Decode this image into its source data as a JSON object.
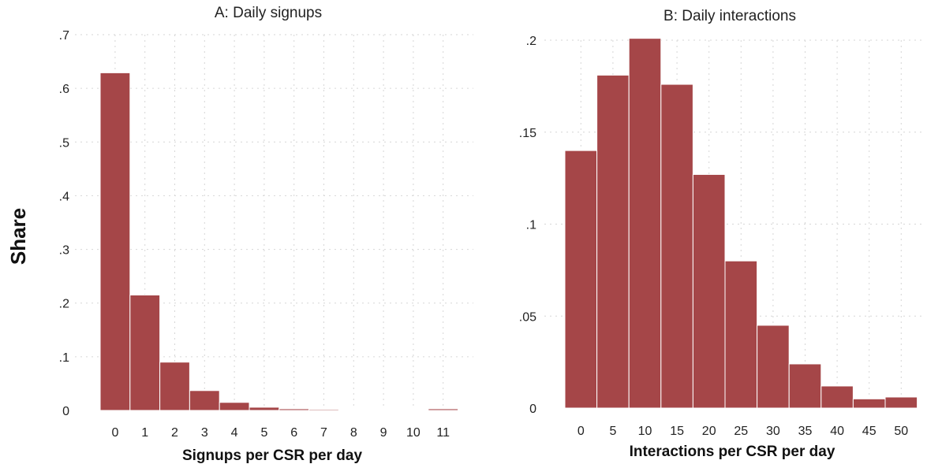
{
  "figure": {
    "shared_ylabel": "Share"
  },
  "colors": {
    "bar_fill": "#a54648",
    "bar_edge": "#7a2a2c",
    "grid": "#d6d6d6",
    "text": "#222222"
  },
  "chart_data": [
    {
      "type": "bar",
      "title": "A: Daily signups",
      "xlabel": "Signups per CSR per day",
      "ylabel": "Share",
      "categories": [
        "0",
        "1",
        "2",
        "3",
        "4",
        "5",
        "6",
        "7",
        "8",
        "9",
        "10",
        "11"
      ],
      "values": [
        0.629,
        0.215,
        0.09,
        0.037,
        0.015,
        0.006,
        0.003,
        0.002,
        0.001,
        0.001,
        0.001,
        0.003
      ],
      "ylim": [
        0,
        0.7
      ],
      "yticks": [
        0,
        0.1,
        0.2,
        0.3,
        0.4,
        0.5,
        0.6,
        0.7
      ],
      "ytick_labels": [
        "0",
        ".1",
        ".2",
        ".3",
        ".4",
        ".5",
        ".6",
        ".7"
      ],
      "grid": true
    },
    {
      "type": "bar",
      "title": "B: Daily interactions",
      "xlabel": "Interactions per CSR per day",
      "ylabel": "Share",
      "categories": [
        "0",
        "5",
        "10",
        "15",
        "20",
        "25",
        "30",
        "35",
        "40",
        "45",
        "50"
      ],
      "values": [
        0.14,
        0.181,
        0.201,
        0.176,
        0.127,
        0.08,
        0.045,
        0.024,
        0.012,
        0.005,
        0.006
      ],
      "ylim": [
        0,
        0.2
      ],
      "yticks": [
        0,
        0.05,
        0.1,
        0.15,
        0.2
      ],
      "ytick_labels": [
        "0",
        ".05",
        ".1",
        ".15",
        ".2"
      ],
      "grid": true
    }
  ]
}
